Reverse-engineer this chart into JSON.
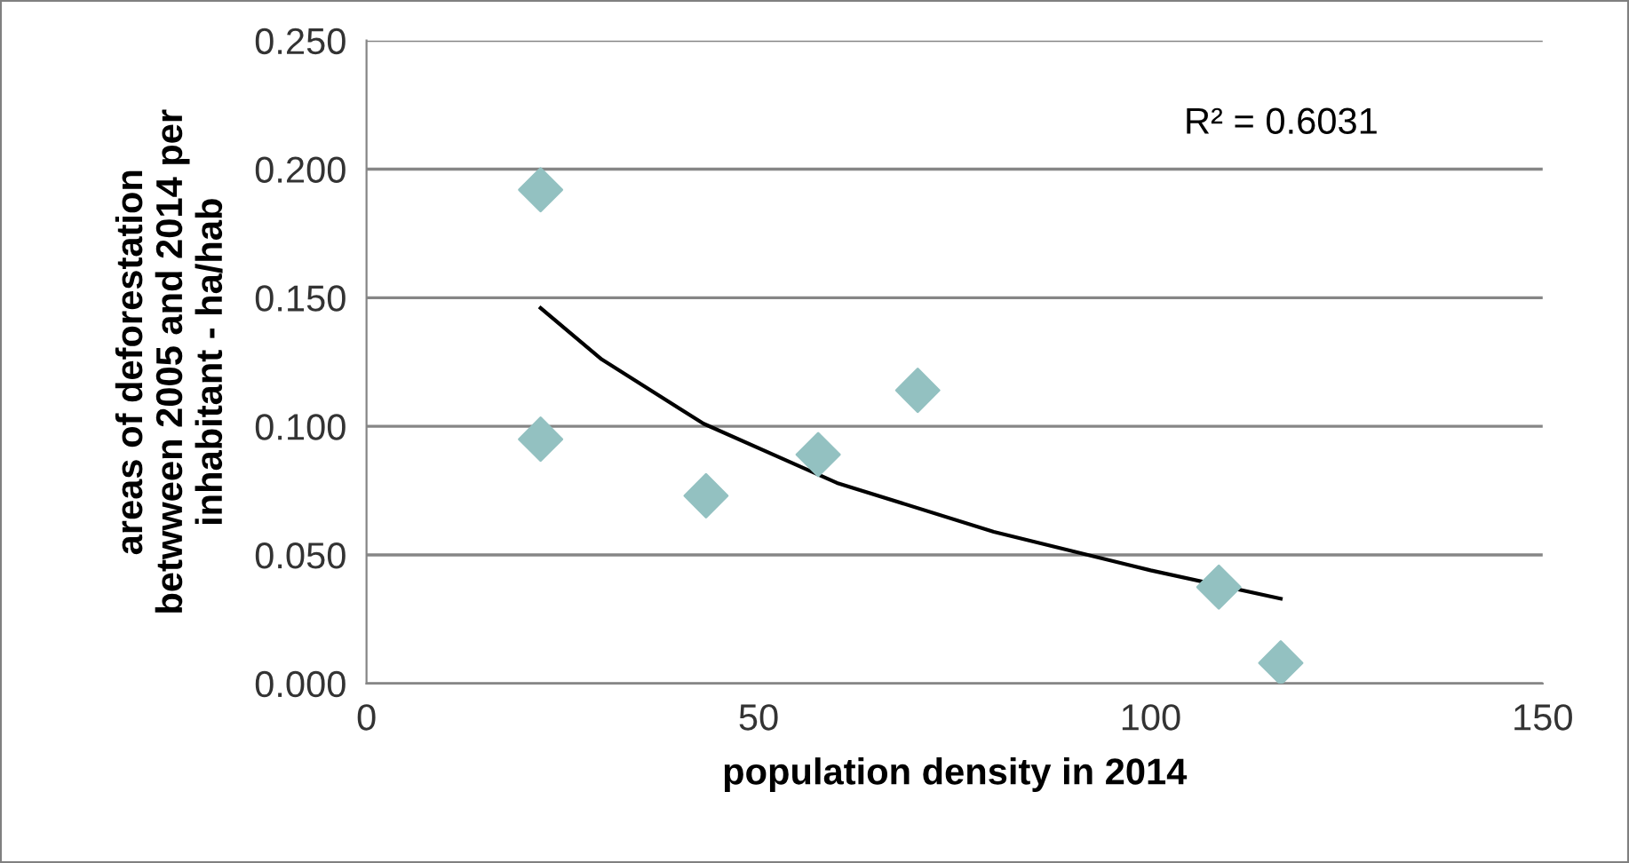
{
  "chart_data": {
    "type": "scatter",
    "xlabel": "population density in 2014",
    "ylabel": "areas of deforestation\nbetwween 2005 and 2014 per\ninhabitant - ha/hab",
    "xlim": [
      0,
      150
    ],
    "xticks": [
      0,
      50,
      100,
      150
    ],
    "ylim": [
      0,
      0.25
    ],
    "yticks": [
      {
        "value": 0,
        "label": "0.000"
      },
      {
        "value": 0.05,
        "label": "0.050"
      },
      {
        "value": 0.1,
        "label": "0.100"
      },
      {
        "value": 0.15,
        "label": "0.150"
      },
      {
        "value": 0.2,
        "label": "0.200"
      },
      {
        "value": 0.25,
        "label": "0.250"
      }
    ],
    "grid": "y",
    "marker": "diamond",
    "series": [
      {
        "color": "#93c1c1",
        "x": [
          22.2,
          22.2,
          43.3,
          57.6,
          70.3,
          108.7,
          116.6
        ],
        "values": [
          0.192,
          0.095,
          0.073,
          0.089,
          0.114,
          0.0375,
          0.008
        ]
      },
      {
        "type": "line",
        "color": "#000000",
        "marker": "none",
        "x": [
          22.2,
          30,
          43,
          60,
          80,
          100,
          116.6
        ],
        "values": [
          0.146,
          0.126,
          0.101,
          0.078,
          0.059,
          0.044,
          0.033
        ]
      }
    ],
    "annotations": [
      "R² = 0.6031"
    ]
  }
}
